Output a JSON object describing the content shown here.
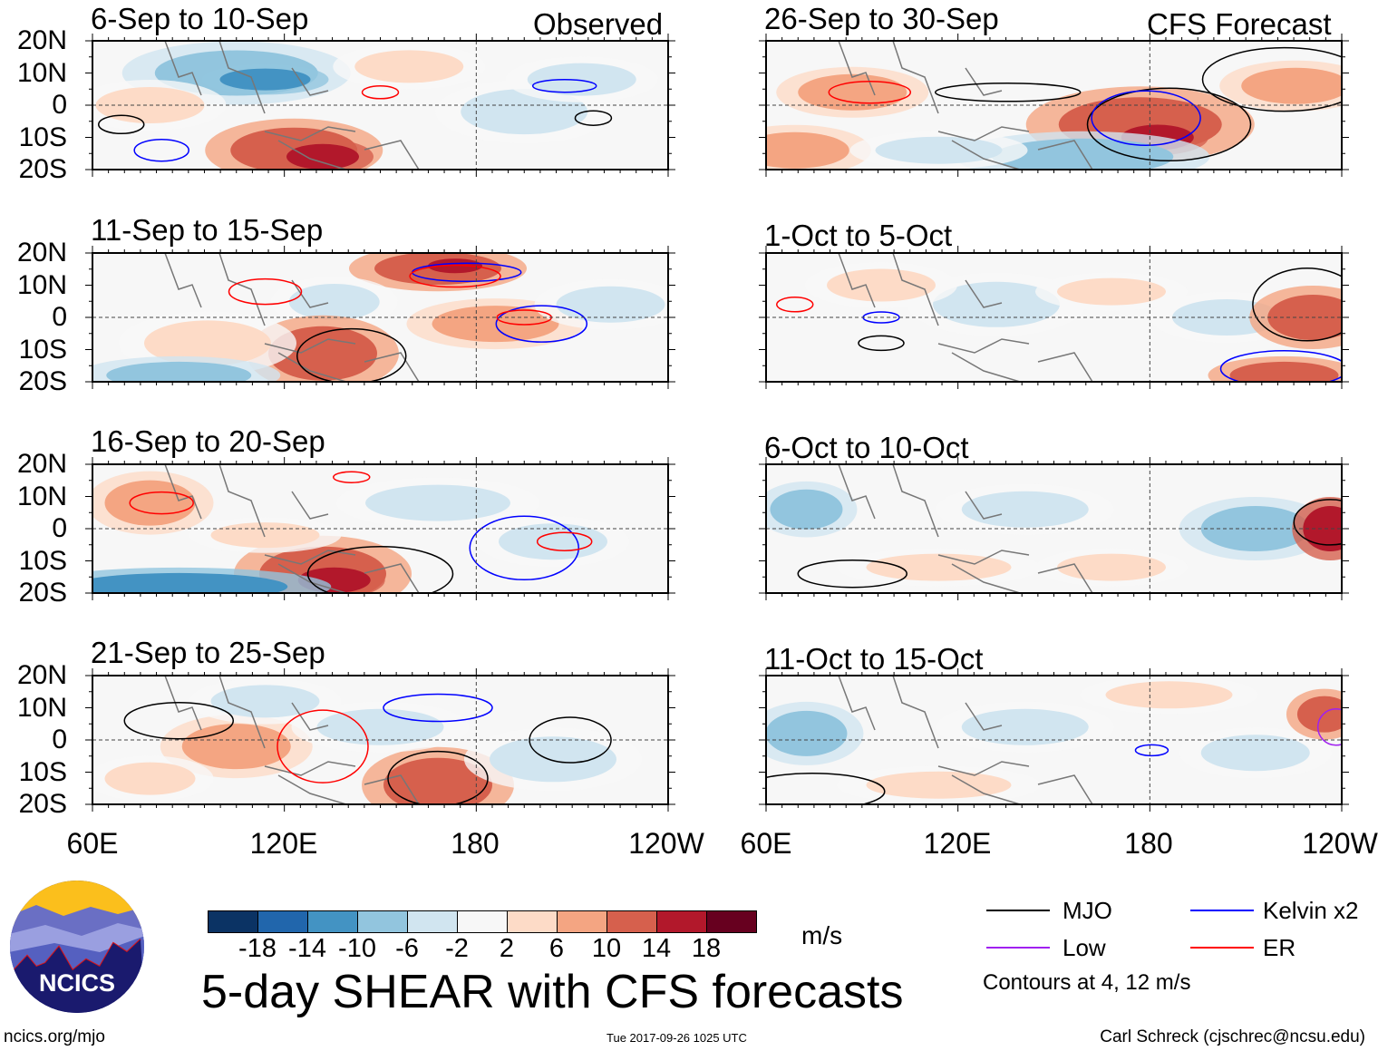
{
  "panels_left": [
    {
      "title": "6-Sep to 10-Sep",
      "label": "Observed"
    },
    {
      "title": "11-Sep to 15-Sep",
      "label": ""
    },
    {
      "title": "16-Sep to 20-Sep",
      "label": ""
    },
    {
      "title": "21-Sep to 25-Sep",
      "label": ""
    }
  ],
  "panels_right": [
    {
      "title": "26-Sep to 30-Sep",
      "label": "CFS Forecast"
    },
    {
      "title": "1-Oct to 5-Oct",
      "label": ""
    },
    {
      "title": "6-Oct to 10-Oct",
      "label": ""
    },
    {
      "title": "11-Oct to 15-Oct",
      "label": ""
    }
  ],
  "y_ticks": [
    "20N",
    "10N",
    "0",
    "10S",
    "20S"
  ],
  "x_ticks": [
    "60E",
    "120E",
    "180",
    "120W"
  ],
  "colorbar": {
    "colors": [
      "#0b3364",
      "#2166ac",
      "#4393c3",
      "#92c5de",
      "#d1e5f0",
      "#f7f7f7",
      "#fddbc7",
      "#f4a582",
      "#d6604d",
      "#b2182b",
      "#67001f"
    ],
    "labels": [
      "-18",
      "-14",
      "-10",
      "-6",
      "-2",
      "2",
      "6",
      "10",
      "14",
      "18"
    ],
    "units": "m/s"
  },
  "title": "5-day SHEAR with CFS forecasts",
  "legend": {
    "items": [
      {
        "label": "MJO",
        "color": "#000000"
      },
      {
        "label": "Kelvin x2",
        "color": "#0000ff"
      },
      {
        "label": "Low",
        "color": "#a020f0"
      },
      {
        "label": "ER",
        "color": "#ff0000"
      }
    ],
    "note": "Contours at 4, 12 m/s"
  },
  "logo_text": "NCICS",
  "footer": {
    "url": "ncics.org/mjo",
    "timestamp": "Tue 2017-09-26 1025 UTC",
    "author": "Carl Schreck (cjschrec@ncsu.edu)"
  }
}
